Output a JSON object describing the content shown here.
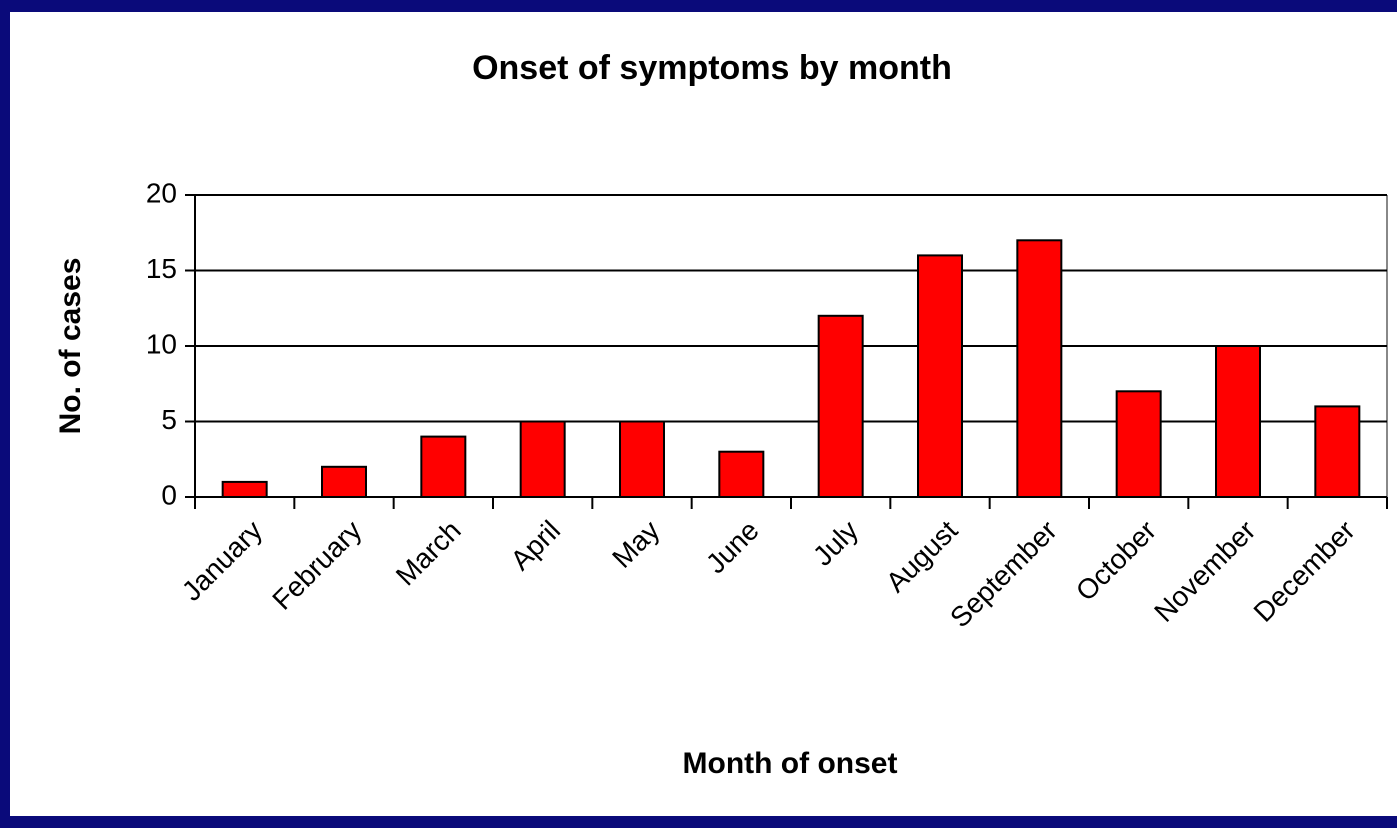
{
  "chart_data": {
    "type": "bar",
    "title": "Onset of symptoms by month",
    "x_label": "Month of onset",
    "y_label": "No. of cases",
    "categories": [
      "January",
      "February",
      "March",
      "April",
      "May",
      "June",
      "July",
      "August",
      "September",
      "October",
      "November",
      "December"
    ],
    "values": [
      1,
      2,
      4,
      5,
      5,
      3,
      12,
      16,
      17,
      7,
      10,
      6
    ],
    "color": "#ff0000",
    "ylim": [
      0,
      20
    ],
    "yticks": [
      0,
      5,
      10,
      15,
      20
    ],
    "grid": true
  }
}
